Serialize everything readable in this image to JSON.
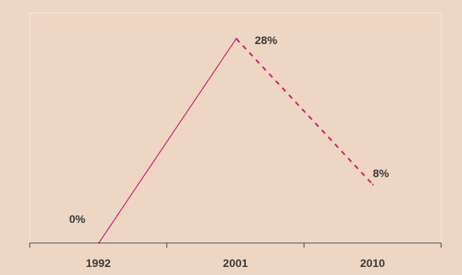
{
  "chart_data": {
    "type": "line",
    "categories": [
      "1992",
      "2001",
      "2010"
    ],
    "values": [
      0,
      28,
      8
    ],
    "data_labels": [
      "0%",
      "28%",
      "8%"
    ],
    "ylim": [
      0,
      30
    ],
    "grid": false,
    "legend": "none",
    "segment_styles": [
      "solid",
      "dashed"
    ],
    "colors": {
      "background": "#edd6c4",
      "line": "#d6196e",
      "axis": "#444444",
      "frame": "#f4e6dc",
      "text": "#3a3a3a"
    }
  }
}
